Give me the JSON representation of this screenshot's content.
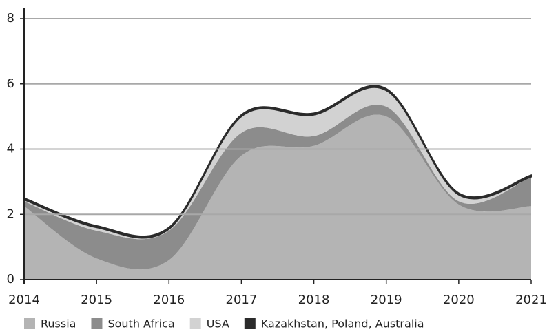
{
  "chart_data": {
    "type": "stacked_area",
    "x": [
      2014,
      2015,
      2016,
      2017,
      2018,
      2019,
      2020,
      2021
    ],
    "series": [
      {
        "name": "Russia",
        "color": "#b4b4b4",
        "values": [
          2.25,
          0.65,
          0.6,
          3.8,
          4.1,
          5.0,
          2.3,
          2.25
        ]
      },
      {
        "name": "South Africa",
        "color": "#8c8c8c",
        "values": [
          0.15,
          0.85,
          0.9,
          0.7,
          0.3,
          0.3,
          0.1,
          0.9
        ]
      },
      {
        "name": "USA",
        "color": "#d2d2d2",
        "values": [
          0.05,
          0.1,
          0.05,
          0.5,
          0.65,
          0.5,
          0.2,
          0.0
        ]
      },
      {
        "name": "Kazakhstan, Poland, Australia",
        "color": "#2b2b2b",
        "values": [
          0.05,
          0.05,
          0.05,
          0.05,
          0.05,
          0.05,
          0.05,
          0.05
        ]
      }
    ],
    "xlim": [
      2014,
      2021
    ],
    "xticks": [
      2014,
      2015,
      2016,
      2017,
      2018,
      2019,
      2020,
      2021
    ],
    "ylim": [
      0,
      8
    ],
    "yticks": [
      0,
      2,
      4,
      6,
      8
    ],
    "grid": true,
    "legend": "bottom"
  }
}
